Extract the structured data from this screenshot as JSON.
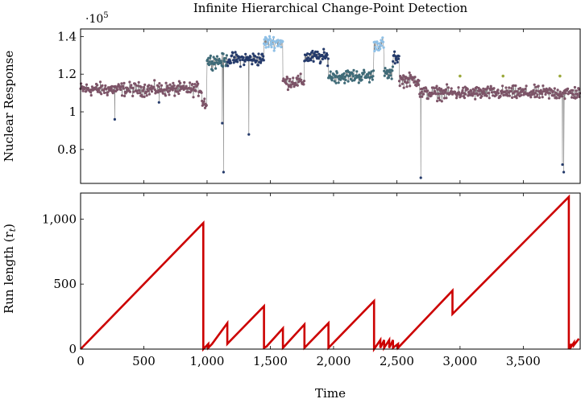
{
  "chart_data": [
    {
      "type": "scatter",
      "title": "Infinite Hierarchical Change-Point Detection",
      "ylabel": "Nuclear Response",
      "y_multiplier": "·10",
      "y_multiplier_exp": "5",
      "xlim": [
        0,
        3950
      ],
      "ylim": [
        0.62,
        1.44
      ],
      "yticks": [
        0.8,
        1,
        1.2,
        1.4
      ],
      "ytick_labels": [
        "0.8",
        "1",
        "1.2",
        "1.4"
      ],
      "series_colors": {
        "mauve": "#7d5468",
        "navy": "#243a6b",
        "teal": "#3f6b78",
        "lightblue": "#8fc0e6",
        "olive": "#9aa83a",
        "line": "#808080"
      },
      "segments": [
        {
          "x": [
            0,
            960
          ],
          "level": 1.12,
          "color": "mauve"
        },
        {
          "x": [
            960,
            1000
          ],
          "level": 1.05,
          "color": "mauve"
        },
        {
          "x": [
            1000,
            1160
          ],
          "level": 1.27,
          "color": "teal"
        },
        {
          "x": [
            1160,
            1450
          ],
          "level": 1.28,
          "color": "navy"
        },
        {
          "x": [
            1450,
            1600
          ],
          "level": 1.37,
          "color": "lightblue"
        },
        {
          "x": [
            1600,
            1770
          ],
          "level": 1.16,
          "color": "mauve"
        },
        {
          "x": [
            1770,
            1960
          ],
          "level": 1.29,
          "color": "navy"
        },
        {
          "x": [
            1960,
            2320
          ],
          "level": 1.19,
          "color": "teal"
        },
        {
          "x": [
            2320,
            2400
          ],
          "level": 1.36,
          "color": "lightblue"
        },
        {
          "x": [
            2400,
            2470
          ],
          "level": 1.2,
          "color": "teal"
        },
        {
          "x": [
            2470,
            2520
          ],
          "level": 1.29,
          "color": "navy"
        },
        {
          "x": [
            2520,
            2680
          ],
          "level": 1.17,
          "color": "mauve"
        },
        {
          "x": [
            2680,
            3950
          ],
          "level": 1.1,
          "color": "mauve"
        }
      ],
      "dips": [
        {
          "x": 270,
          "y": 0.96
        },
        {
          "x": 620,
          "y": 1.05
        },
        {
          "x": 1120,
          "y": 0.94
        },
        {
          "x": 1130,
          "y": 0.68
        },
        {
          "x": 1330,
          "y": 0.88
        },
        {
          "x": 2690,
          "y": 0.65
        },
        {
          "x": 3810,
          "y": 0.72
        },
        {
          "x": 3820,
          "y": 0.68
        }
      ]
    },
    {
      "type": "line",
      "xlabel": "Time",
      "ylabel": "Run length (r",
      "ylabel_sub": "t",
      "ylabel_suffix": ")",
      "xlim": [
        0,
        3950
      ],
      "ylim": [
        0,
        1200
      ],
      "xticks": [
        0,
        500,
        1000,
        1500,
        2000,
        2500,
        3000,
        3500
      ],
      "xtick_labels": [
        "0",
        "500",
        "1,000",
        "1,500",
        "2,000",
        "2,500",
        "3,000",
        "3,500"
      ],
      "yticks": [
        0,
        500,
        1000
      ],
      "ytick_labels": [
        "0",
        "500",
        "1,000"
      ],
      "color": "#cc0000",
      "x": [
        0,
        970,
        970,
        1010,
        1010,
        1040,
        1040,
        1160,
        1160,
        1170,
        1170,
        1450,
        1450,
        1470,
        1470,
        1600,
        1600,
        1610,
        1610,
        1770,
        1770,
        1780,
        1780,
        1960,
        1960,
        1970,
        1970,
        2320,
        2320,
        2370,
        2370,
        2400,
        2400,
        2440,
        2440,
        2470,
        2470,
        2510,
        2510,
        2520,
        2520,
        2940,
        2940,
        3860,
        3860,
        3880,
        3880,
        3900,
        3900,
        3940
      ],
      "y": [
        0,
        970,
        0,
        40,
        10,
        40,
        40,
        200,
        40,
        50,
        50,
        330,
        10,
        20,
        20,
        160,
        10,
        20,
        20,
        190,
        10,
        20,
        20,
        200,
        10,
        20,
        20,
        370,
        0,
        70,
        10,
        70,
        10,
        70,
        10,
        70,
        10,
        40,
        10,
        20,
        20,
        450,
        270,
        1170,
        0,
        40,
        20,
        50,
        30,
        80
      ]
    }
  ]
}
